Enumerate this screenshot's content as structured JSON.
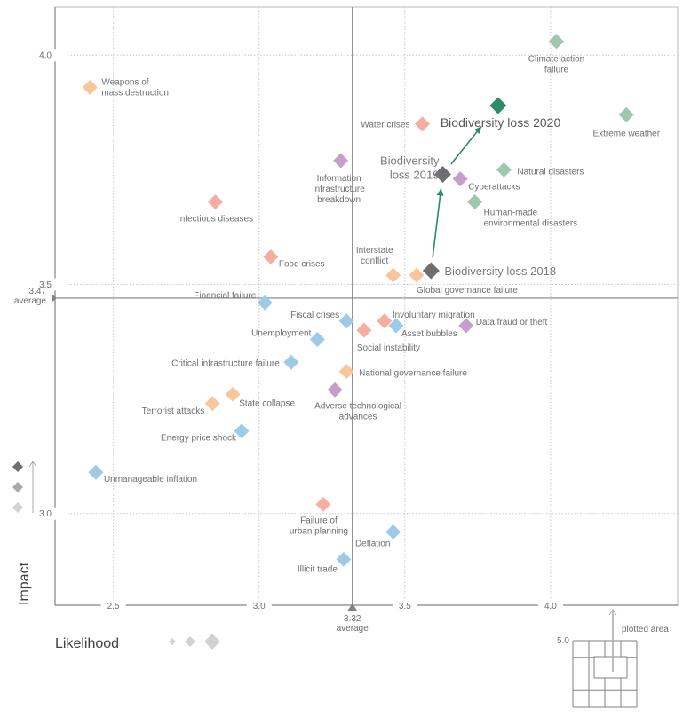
{
  "chart_data": {
    "type": "scatter",
    "title": "",
    "xlabel": "Likelihood",
    "ylabel": "Impact",
    "xlim": [
      2.3,
      4.436
    ],
    "ylim": [
      2.8,
      4.105
    ],
    "xticks": [
      "2.5",
      "3.0",
      "3.5",
      "4.0"
    ],
    "xtick_values": [
      2.5,
      3.0,
      3.5,
      4.0
    ],
    "yticks": [
      "3.0",
      "3.5",
      "4.0"
    ],
    "ytick_values": [
      3.0,
      3.5,
      4.0
    ],
    "grid": true,
    "x_average": {
      "value": 3.32,
      "label": "3.32",
      "caption": "average"
    },
    "y_average": {
      "value": 3.47,
      "label": "3.47",
      "caption": "average"
    },
    "inset": {
      "scale_label": "5.0",
      "caption": "plotted area"
    },
    "category_colors": {
      "economic": "#9dcbe7",
      "environmental": "#9ec7ae",
      "geopolitical": "#f7c79b",
      "societal": "#f5aea2",
      "technological": "#c59fc8",
      "highlight_past": "#6d6e71",
      "highlight_current": "#2f8a67"
    },
    "arrow_color": "#2f8a67",
    "points": [
      {
        "label": [
          "Weapons of",
          "mass destruction"
        ],
        "x": 2.42,
        "y": 3.93,
        "category": "geopolitical"
      },
      {
        "label": [
          "Climate action",
          "failure"
        ],
        "x": 4.02,
        "y": 4.03,
        "category": "environmental"
      },
      {
        "label": [
          "Biodiversity loss 2020"
        ],
        "x": 3.82,
        "y": 3.89,
        "category": "highlight_current"
      },
      {
        "label": [
          "Extreme weather"
        ],
        "x": 4.26,
        "y": 3.87,
        "category": "environmental"
      },
      {
        "label": [
          "Water crises"
        ],
        "x": 3.56,
        "y": 3.85,
        "category": "societal"
      },
      {
        "label": [
          "Information",
          "infrastructure",
          "breakdown"
        ],
        "x": 3.28,
        "y": 3.77,
        "category": "technological"
      },
      {
        "label": [
          "Natural disasters"
        ],
        "x": 3.84,
        "y": 3.75,
        "category": "environmental"
      },
      {
        "label": [
          "Biodiversity",
          "loss 2019"
        ],
        "x": 3.63,
        "y": 3.74,
        "category": "highlight_past"
      },
      {
        "label": [
          "Cyberattacks"
        ],
        "x": 3.69,
        "y": 3.73,
        "category": "technological"
      },
      {
        "label": [
          "Human-made",
          "environmental disasters"
        ],
        "x": 3.74,
        "y": 3.68,
        "category": "environmental"
      },
      {
        "label": [
          "Infectious diseases"
        ],
        "x": 2.85,
        "y": 3.68,
        "category": "societal"
      },
      {
        "label": [
          "Food crises"
        ],
        "x": 3.04,
        "y": 3.56,
        "category": "societal"
      },
      {
        "label": [
          "Biodiversity loss 2018"
        ],
        "x": 3.59,
        "y": 3.53,
        "category": "highlight_past"
      },
      {
        "label": [
          "Interstate",
          "conflict"
        ],
        "x": 3.46,
        "y": 3.52,
        "category": "geopolitical"
      },
      {
        "label": [
          "Global governance failure"
        ],
        "x": 3.54,
        "y": 3.52,
        "category": "geopolitical"
      },
      {
        "label": [
          "Financial failure"
        ],
        "x": 3.02,
        "y": 3.46,
        "category": "economic"
      },
      {
        "label": [
          "Fiscal crises"
        ],
        "x": 3.3,
        "y": 3.42,
        "category": "economic"
      },
      {
        "label": [
          "Involuntary migration"
        ],
        "x": 3.43,
        "y": 3.42,
        "category": "societal"
      },
      {
        "label": [
          "Social instability"
        ],
        "x": 3.36,
        "y": 3.4,
        "category": "societal"
      },
      {
        "label": [
          "Asset bubbles"
        ],
        "x": 3.47,
        "y": 3.41,
        "category": "economic"
      },
      {
        "label": [
          "Data fraud or theft"
        ],
        "x": 3.71,
        "y": 3.41,
        "category": "technological"
      },
      {
        "label": [
          "Unemployment"
        ],
        "x": 3.2,
        "y": 3.38,
        "category": "economic"
      },
      {
        "label": [
          "Critical infrastructure failure"
        ],
        "x": 3.11,
        "y": 3.33,
        "category": "economic"
      },
      {
        "label": [
          "National governance failure"
        ],
        "x": 3.3,
        "y": 3.31,
        "category": "geopolitical"
      },
      {
        "label": [
          "Adverse technological",
          "advances"
        ],
        "x": 3.26,
        "y": 3.27,
        "category": "technological"
      },
      {
        "label": [
          "State collapse"
        ],
        "x": 2.91,
        "y": 3.26,
        "category": "geopolitical"
      },
      {
        "label": [
          "Terrorist attacks"
        ],
        "x": 2.84,
        "y": 3.24,
        "category": "geopolitical"
      },
      {
        "label": [
          "Energy price shock"
        ],
        "x": 2.94,
        "y": 3.18,
        "category": "economic"
      },
      {
        "label": [
          "Unmanageable inflation"
        ],
        "x": 2.44,
        "y": 3.09,
        "category": "economic"
      },
      {
        "label": [
          "Failure of",
          "urban planning"
        ],
        "x": 3.22,
        "y": 3.02,
        "category": "societal"
      },
      {
        "label": [
          "Deflation"
        ],
        "x": 3.46,
        "y": 2.96,
        "category": "economic"
      },
      {
        "label": [
          "Illicit trade"
        ],
        "x": 3.29,
        "y": 2.9,
        "category": "economic"
      }
    ]
  }
}
